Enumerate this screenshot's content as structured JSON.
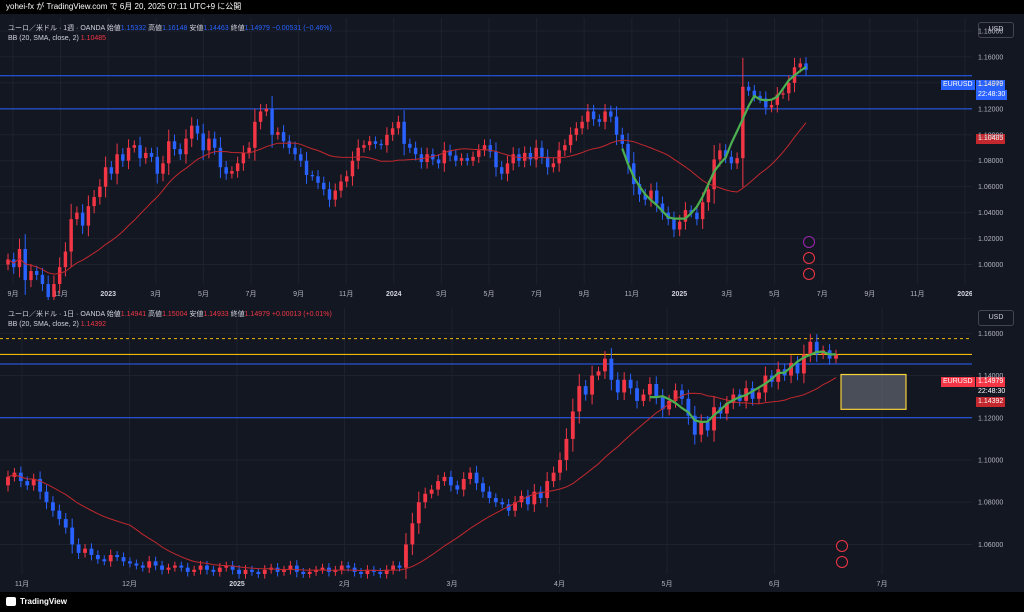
{
  "header": {
    "title": "yohei-fx が TradingView.com で 6月 20, 2025 07:11 UTC+9 に公開"
  },
  "footer": {
    "brand": "TradingView"
  },
  "colors": {
    "up": "#f23645",
    "down": "#2962ff",
    "bb": "#c2282e",
    "hline": "#2962ff",
    "wave": "#4caf50",
    "dashed": "#f0b90b",
    "box": "#f5d13a"
  },
  "chart_data": [
    {
      "type": "candlestick",
      "pane": "weekly",
      "legend_title": "ユーロ／米ドル · 1週 · OANDA",
      "ohlc_label": {
        "o": "始値",
        "o_v": "1.15332",
        "h": "高値",
        "h_v": "1.16148",
        "l": "安値",
        "l_v": "1.14463",
        "c": "終値",
        "c_v": "1.14979",
        "chg": "−0.00531 (−0.46%)"
      },
      "indicator_label": "BB (20, SMA, close, 2)",
      "indicator_value": "1.10485",
      "currency": "USD",
      "symbol": "EURUSD",
      "last_price": "1.14979",
      "countdown": "22:48:30",
      "bb_price": "1.10485",
      "y_ticks": [
        "1.18000",
        "1.16000",
        "1.14000",
        "1.12000",
        "1.10000",
        "1.08000",
        "1.06000",
        "1.04000",
        "1.02000",
        "1.00000"
      ],
      "y_range": [
        0.985,
        1.19
      ],
      "x_ticks": [
        {
          "label": "9月",
          "bold": false
        },
        {
          "label": "11月",
          "bold": false
        },
        {
          "label": "2023",
          "bold": true
        },
        {
          "label": "3月",
          "bold": false
        },
        {
          "label": "5月",
          "bold": false
        },
        {
          "label": "7月",
          "bold": false
        },
        {
          "label": "9月",
          "bold": false
        },
        {
          "label": "11月",
          "bold": false
        },
        {
          "label": "2024",
          "bold": true
        },
        {
          "label": "3月",
          "bold": false
        },
        {
          "label": "5月",
          "bold": false
        },
        {
          "label": "7月",
          "bold": false
        },
        {
          "label": "9月",
          "bold": false
        },
        {
          "label": "11月",
          "bold": false
        },
        {
          "label": "2025",
          "bold": true
        },
        {
          "label": "3月",
          "bold": false
        },
        {
          "label": "5月",
          "bold": false
        },
        {
          "label": "7月",
          "bold": false
        },
        {
          "label": "9月",
          "bold": false
        },
        {
          "label": "11月",
          "bold": false
        },
        {
          "label": "2026",
          "bold": true
        }
      ],
      "hlines": [
        1.1455,
        1.12
      ],
      "closes": [
        1.004,
        0.998,
        1.012,
        0.988,
        0.995,
        0.992,
        0.985,
        0.975,
        0.985,
        0.998,
        1.01,
        1.035,
        1.04,
        1.03,
        1.045,
        1.052,
        1.06,
        1.075,
        1.07,
        1.085,
        1.08,
        1.09,
        1.092,
        1.082,
        1.086,
        1.083,
        1.07,
        1.078,
        1.095,
        1.089,
        1.085,
        1.097,
        1.107,
        1.101,
        1.088,
        1.097,
        1.09,
        1.075,
        1.07,
        1.072,
        1.078,
        1.086,
        1.09,
        1.11,
        1.118,
        1.12,
        1.1,
        1.102,
        1.095,
        1.09,
        1.085,
        1.08,
        1.069,
        1.068,
        1.063,
        1.058,
        1.05,
        1.057,
        1.064,
        1.068,
        1.08,
        1.09,
        1.092,
        1.095,
        1.093,
        1.092,
        1.1,
        1.105,
        1.11,
        1.093,
        1.09,
        1.085,
        1.079,
        1.085,
        1.081,
        1.078,
        1.088,
        1.084,
        1.08,
        1.082,
        1.08,
        1.083,
        1.088,
        1.092,
        1.087,
        1.075,
        1.07,
        1.078,
        1.085,
        1.08,
        1.086,
        1.081,
        1.09,
        1.083,
        1.075,
        1.078,
        1.088,
        1.092,
        1.1,
        1.105,
        1.11,
        1.118,
        1.112,
        1.11,
        1.118,
        1.114,
        1.1,
        1.093,
        1.078,
        1.062,
        1.054,
        1.05,
        1.057,
        1.047,
        1.04,
        1.035,
        1.027,
        1.033,
        1.042,
        1.04,
        1.035,
        1.048,
        1.058,
        1.081,
        1.088,
        1.083,
        1.078,
        1.082,
        1.137,
        1.134,
        1.13,
        1.128,
        1.121,
        1.123,
        1.131,
        1.132,
        1.14,
        1.152,
        1.155,
        1.15
      ]
    },
    {
      "type": "candlestick",
      "pane": "daily",
      "legend_title": "ユーロ／米ドル · 1日 · OANDA",
      "ohlc_label": {
        "o": "始値",
        "o_v": "1.14941",
        "h": "高値",
        "h_v": "1.15004",
        "l": "安値",
        "l_v": "1.14933",
        "c": "終値",
        "c_v": "1.14979",
        "chg": "+0.00013 (+0.01%)"
      },
      "indicator_label": "BB (20, SMA, close, 2)",
      "indicator_value": "1.14392",
      "currency": "USD",
      "symbol": "EURUSD",
      "last_price": "1.14979",
      "countdown": "22:48:30",
      "bb_price": "1.14392",
      "y_ticks": [
        "1.16000",
        "1.14000",
        "1.12000",
        "1.10000",
        "1.08000",
        "1.06000"
      ],
      "y_range": [
        1.046,
        1.172
      ],
      "x_ticks": [
        {
          "label": "11月",
          "bold": false
        },
        {
          "label": "12月",
          "bold": false
        },
        {
          "label": "2025",
          "bold": true
        },
        {
          "label": "2月",
          "bold": false
        },
        {
          "label": "3月",
          "bold": false
        },
        {
          "label": "4月",
          "bold": false
        },
        {
          "label": "5月",
          "bold": false
        },
        {
          "label": "6月",
          "bold": false
        },
        {
          "label": "7月",
          "bold": false
        }
      ],
      "hlines": [
        1.1455,
        1.12
      ],
      "dashed_line": 1.1575,
      "yellow_line": 1.15,
      "closes": [
        1.092,
        1.094,
        1.09,
        1.088,
        1.091,
        1.085,
        1.08,
        1.076,
        1.072,
        1.068,
        1.06,
        1.056,
        1.058,
        1.055,
        1.053,
        1.052,
        1.055,
        1.054,
        1.052,
        1.051,
        1.05,
        1.049,
        1.052,
        1.05,
        1.048,
        1.049,
        1.05,
        1.049,
        1.047,
        1.048,
        1.05,
        1.048,
        1.047,
        1.049,
        1.05,
        1.048,
        1.046,
        1.048,
        1.047,
        1.046,
        1.048,
        1.049,
        1.047,
        1.048,
        1.05,
        1.047,
        1.046,
        1.047,
        1.048,
        1.049,
        1.047,
        1.048,
        1.05,
        1.049,
        1.047,
        1.046,
        1.048,
        1.047,
        1.046,
        1.048,
        1.05,
        1.049,
        1.06,
        1.07,
        1.08,
        1.084,
        1.086,
        1.09,
        1.092,
        1.088,
        1.086,
        1.091,
        1.094,
        1.089,
        1.085,
        1.082,
        1.08,
        1.079,
        1.076,
        1.08,
        1.083,
        1.079,
        1.085,
        1.082,
        1.09,
        1.094,
        1.1,
        1.11,
        1.123,
        1.135,
        1.131,
        1.14,
        1.142,
        1.148,
        1.138,
        1.132,
        1.138,
        1.134,
        1.128,
        1.131,
        1.136,
        1.13,
        1.124,
        1.128,
        1.133,
        1.129,
        1.121,
        1.112,
        1.118,
        1.114,
        1.125,
        1.122,
        1.127,
        1.131,
        1.128,
        1.134,
        1.129,
        1.132,
        1.14,
        1.137,
        1.143,
        1.14,
        1.146,
        1.141,
        1.15,
        1.156,
        1.15,
        1.152,
        1.148,
        1.15
      ]
    }
  ]
}
